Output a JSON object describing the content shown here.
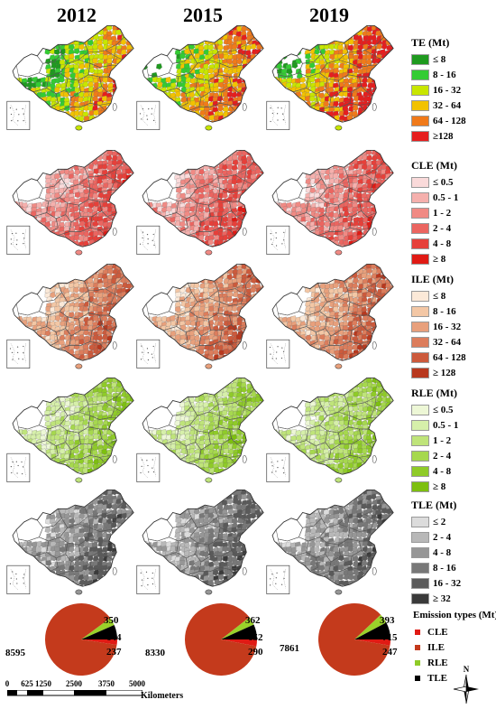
{
  "years": [
    "2012",
    "2015",
    "2019"
  ],
  "rows": [
    {
      "id": "te",
      "title": "TE (Mt)",
      "classes": [
        "≤ 8",
        "8 - 16",
        "16 - 32",
        "32 - 64",
        "64 - 128",
        "≥128"
      ],
      "colors": [
        "#1f9a1f",
        "#33cc33",
        "#c8e600",
        "#f2c200",
        "#f07a1a",
        "#e61e1e"
      ],
      "base": "#ffffff"
    },
    {
      "id": "cle",
      "title": "CLE (Mt)",
      "classes": [
        "≤ 0.5",
        "0.5 - 1",
        "1 - 2",
        "2 - 4",
        "4 - 8",
        "≥ 8"
      ],
      "colors": [
        "#fadada",
        "#f5b0ad",
        "#f08a84",
        "#eb6560",
        "#e6403a",
        "#e01a14"
      ],
      "base": "#ffffff"
    },
    {
      "id": "ile",
      "title": "ILE (Mt)",
      "classes": [
        "≤ 8",
        "8 - 16",
        "16 - 32",
        "32 - 64",
        "64 - 128",
        "≥ 128"
      ],
      "colors": [
        "#fbe9d8",
        "#f3c7a5",
        "#e8a07c",
        "#dc7d5c",
        "#cc5a3c",
        "#b8381e"
      ],
      "base": "#ffffff"
    },
    {
      "id": "rle",
      "title": "RLE (Mt)",
      "classes": [
        "≤ 0.5",
        "0.5 - 1",
        "1 - 2",
        "2 - 4",
        "4 - 8",
        "≥ 8"
      ],
      "colors": [
        "#edf7d6",
        "#d6efaa",
        "#bfe47a",
        "#a6d84e",
        "#8fcb28",
        "#7dbf10"
      ],
      "base": "#ffffff"
    },
    {
      "id": "tle",
      "title": "TLE (Mt)",
      "classes": [
        "≤ 2",
        "2 - 4",
        "4 - 8",
        "8 - 16",
        "16 - 32",
        "≥ 32"
      ],
      "colors": [
        "#dcdcdc",
        "#b8b8b8",
        "#969696",
        "#787878",
        "#5a5a5a",
        "#3a3a3a"
      ],
      "base": "#ffffff"
    }
  ],
  "pies": [
    {
      "year": "2012",
      "CLE": 237,
      "ILE": 8595,
      "RLE": 350,
      "TLE": 644,
      "labels": {
        "ILE": "8595",
        "RLE": "350",
        "TLE": "644",
        "CLE": "237"
      }
    },
    {
      "year": "2015",
      "CLE": 290,
      "ILE": 8330,
      "RLE": 362,
      "TLE": 652,
      "labels": {
        "ILE": "8330",
        "RLE": "362",
        "TLE": "652",
        "CLE": "290"
      }
    },
    {
      "year": "2019",
      "CLE": 247,
      "ILE": 7861,
      "RLE": 393,
      "TLE": 715,
      "labels": {
        "ILE": "7861",
        "RLE": "393",
        "TLE": "715",
        "CLE": "247"
      }
    }
  ],
  "emission_legend": {
    "title": "Emission types (Mt)",
    "items": [
      {
        "label": "CLE",
        "color": "#e01a14"
      },
      {
        "label": "ILE",
        "color": "#c43a1c"
      },
      {
        "label": "RLE",
        "color": "#8fcb28"
      },
      {
        "label": "TLE",
        "color": "#000000"
      }
    ]
  },
  "pie_colors": {
    "ILE": "#c43a1c",
    "RLE": "#9ad12a",
    "TLE": "#000000",
    "CLE": "#e01a14"
  },
  "scale_bar": {
    "ticks": [
      "0",
      "625",
      "1250",
      "2500",
      "3750",
      "5000"
    ],
    "unit": "Kilometers"
  },
  "north_label": "N"
}
